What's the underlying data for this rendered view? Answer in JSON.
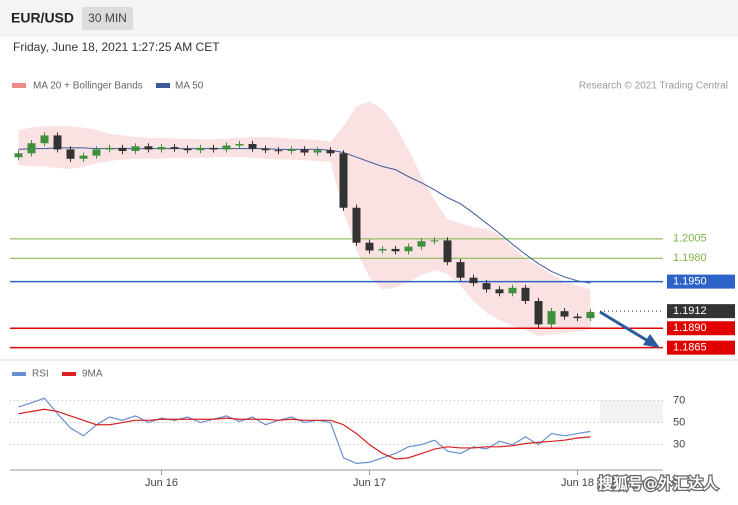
{
  "header": {
    "symbol": "EUR/USD",
    "timeframe": "30 MIN",
    "timestamp": "Friday, June 18, 2021 1:27:25 AM CET"
  },
  "watermark": "搜狐号@外汇达人",
  "chart_data": [
    {
      "type": "candlestick",
      "credit": "Research © 2021 Trading Central",
      "categories": [
        null,
        null,
        null,
        null,
        null,
        null,
        null,
        null,
        null,
        null,
        null,
        "Jun 16",
        null,
        null,
        null,
        null,
        null,
        null,
        null,
        null,
        null,
        null,
        null,
        null,
        null,
        null,
        null,
        "Jun 17",
        null,
        null,
        null,
        null,
        null,
        null,
        null,
        null,
        null,
        null,
        null,
        null,
        null,
        null,
        null,
        "Jun 18",
        null
      ],
      "open": [
        1.211,
        1.2115,
        1.2128,
        1.2138,
        1.212,
        1.2108,
        1.2112,
        1.212,
        1.2122,
        1.2118,
        1.2124,
        1.212,
        1.2123,
        1.2121,
        1.2119,
        1.2122,
        1.212,
        1.2125,
        1.2127,
        1.2121,
        1.2119,
        1.2118,
        1.212,
        1.2116,
        1.2119,
        1.2115,
        1.2045,
        1.2,
        1.199,
        1.1992,
        1.1989,
        1.1995,
        1.2002,
        1.2003,
        1.1975,
        1.1955,
        1.1948,
        1.194,
        1.1935,
        1.1942,
        1.1925,
        1.1895,
        1.1912,
        1.1905,
        1.1903
      ],
      "high": [
        1.2119,
        1.2132,
        1.2142,
        1.2142,
        1.2124,
        1.2116,
        1.2124,
        1.2126,
        1.2126,
        1.2128,
        1.2128,
        1.2127,
        1.2127,
        1.2125,
        1.2126,
        1.2126,
        1.2129,
        1.2131,
        1.2131,
        1.2125,
        1.2123,
        1.2124,
        1.2124,
        1.2123,
        1.2123,
        1.2119,
        1.2049,
        1.2004,
        1.1996,
        1.1996,
        1.1999,
        1.2006,
        1.2007,
        1.2007,
        1.1979,
        1.1959,
        1.1952,
        1.1944,
        1.1946,
        1.1946,
        1.1929,
        1.1916,
        1.1916,
        1.1909,
        1.1915
      ],
      "low": [
        1.2106,
        1.2111,
        1.2124,
        1.2116,
        1.2104,
        1.2104,
        1.2108,
        1.2116,
        1.2114,
        1.2114,
        1.2116,
        1.2116,
        1.2117,
        1.2115,
        1.2115,
        1.2116,
        1.2116,
        1.2121,
        1.2117,
        1.2115,
        1.2114,
        1.2114,
        1.2112,
        1.2112,
        1.2111,
        1.2041,
        1.1996,
        1.1986,
        1.1986,
        1.1985,
        1.1985,
        1.1991,
        1.1998,
        1.1971,
        1.1951,
        1.1944,
        1.1936,
        1.1931,
        1.1931,
        1.1921,
        1.1891,
        1.1891,
        1.1901,
        1.1899,
        1.1899
      ],
      "close": [
        1.2115,
        1.2128,
        1.2138,
        1.212,
        1.2108,
        1.2112,
        1.212,
        1.2122,
        1.2118,
        1.2124,
        1.212,
        1.2123,
        1.2121,
        1.2119,
        1.2122,
        1.212,
        1.2125,
        1.2127,
        1.2121,
        1.2119,
        1.2118,
        1.212,
        1.2116,
        1.2119,
        1.2115,
        1.2045,
        1.2,
        1.199,
        1.1992,
        1.1989,
        1.1995,
        1.2002,
        1.2003,
        1.1975,
        1.1955,
        1.1948,
        1.194,
        1.1935,
        1.1942,
        1.1925,
        1.1895,
        1.1912,
        1.1905,
        1.1903,
        1.1911
      ],
      "up_color": "#3f8f3f",
      "down_color": "#333333",
      "series": [
        {
          "name": "MA 20 + Bollinger Bands",
          "color": "#f08a8a",
          "upper": [
            1.2145,
            1.2148,
            1.215,
            1.215,
            1.215,
            1.2148,
            1.2145,
            1.214,
            1.2138,
            1.2136,
            1.2135,
            1.2135,
            1.2134,
            1.2134,
            1.2133,
            1.2133,
            1.2134,
            1.2135,
            1.2136,
            1.2136,
            1.2135,
            1.2134,
            1.2133,
            1.2132,
            1.213,
            1.215,
            1.2175,
            1.2182,
            1.2172,
            1.215,
            1.212,
            1.2085,
            1.2055,
            1.203,
            1.2025,
            1.202,
            1.2018,
            1.201,
            1.1995,
            1.198,
            1.197,
            1.196,
            1.195,
            1.1945,
            1.194
          ],
          "lower": [
            1.21,
            1.2098,
            1.2098,
            1.2096,
            1.2095,
            1.2098,
            1.2102,
            1.2105,
            1.2107,
            1.2108,
            1.2108,
            1.2108,
            1.2109,
            1.2109,
            1.2109,
            1.211,
            1.211,
            1.211,
            1.2109,
            1.2108,
            1.2107,
            1.2107,
            1.2106,
            1.2105,
            1.2104,
            1.204,
            1.199,
            1.1955,
            1.194,
            1.1942,
            1.195,
            1.1958,
            1.1965,
            1.196,
            1.1945,
            1.1925,
            1.191,
            1.19,
            1.1893,
            1.1888,
            1.188,
            1.1882,
            1.1884,
            1.1886,
            1.1888
          ]
        },
        {
          "name": "MA 50",
          "color": "#3c5a99",
          "values": [
            1.212,
            1.2121,
            1.2121,
            1.2122,
            1.2122,
            1.2122,
            1.2121,
            1.2121,
            1.2121,
            1.2121,
            1.2121,
            1.2121,
            1.2121,
            1.2121,
            1.2121,
            1.2121,
            1.2121,
            1.2121,
            1.2121,
            1.2121,
            1.212,
            1.212,
            1.212,
            1.212,
            1.2119,
            1.2116,
            1.211,
            1.2104,
            1.2098,
            1.2094,
            1.2085,
            1.2077,
            1.2068,
            1.2058,
            1.205,
            1.2038,
            1.2025,
            1.2012,
            1.1998,
            1.1985,
            1.1973,
            1.1963,
            1.1956,
            1.1951,
            1.1948
          ]
        }
      ],
      "levels": [
        {
          "value": 1.2005,
          "label": "1.2005",
          "color": "#7cb342",
          "filled": false
        },
        {
          "value": 1.198,
          "label": "1.1980",
          "color": "#7cb342",
          "filled": false
        },
        {
          "value": 1.195,
          "label": "1.1950",
          "color": "#2d62c8",
          "filled": true
        },
        {
          "value": 1.1912,
          "label": "1.1912",
          "color": "#333333",
          "filled": true,
          "dotted": true
        },
        {
          "value": 1.189,
          "label": "1.1890",
          "color": "#e00000",
          "filled": true
        },
        {
          "value": 1.1865,
          "label": "1.1865",
          "color": "#e00000",
          "filled": true
        }
      ],
      "ylim": [
        1.1853,
        1.219
      ]
    },
    {
      "type": "line",
      "series": [
        {
          "name": "RSI",
          "color": "#6a8fd0",
          "values": [
            64,
            68,
            72,
            58,
            45,
            38,
            48,
            55,
            52,
            56,
            50,
            54,
            52,
            55,
            50,
            53,
            56,
            51,
            55,
            48,
            52,
            55,
            50,
            52,
            50,
            18,
            13,
            14,
            18,
            22,
            28,
            30,
            34,
            24,
            22,
            28,
            26,
            33,
            30,
            37,
            30,
            40,
            38,
            40,
            42
          ]
        },
        {
          "name": "9MA",
          "color": "#d62020",
          "values": [
            58,
            60,
            62,
            60,
            56,
            52,
            48,
            48,
            50,
            52,
            52,
            53,
            53,
            53,
            53,
            53,
            54,
            53,
            53,
            53,
            52,
            53,
            52,
            52,
            52,
            48,
            40,
            30,
            22,
            17,
            18,
            22,
            26,
            28,
            27,
            27,
            28,
            28,
            29,
            31,
            32,
            33,
            34,
            36,
            37
          ]
        }
      ],
      "ylim": [
        7,
        84
      ],
      "yticks": [
        30,
        50,
        70
      ],
      "grid": true
    }
  ]
}
